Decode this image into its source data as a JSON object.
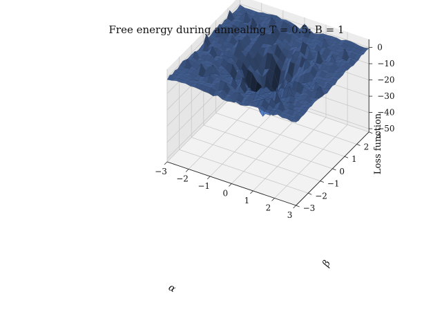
{
  "chart_data": {
    "type": "surface3d",
    "title": "Free energy during annealing T = 0.5:  B = 1",
    "xlabel": "α",
    "ylabel": "β",
    "zlabel": "Loss function",
    "x_ticks": [
      "−3",
      "−2",
      "−1",
      "0",
      "1",
      "2",
      "3"
    ],
    "y_ticks": [
      "−3",
      "−2",
      "−1",
      "0",
      "1",
      "2",
      "3"
    ],
    "z_ticks": [
      "0",
      "−10",
      "−20",
      "−30",
      "−40",
      "−50"
    ],
    "xlim": [
      -3,
      3
    ],
    "ylim": [
      -3,
      3
    ],
    "zlim": [
      -52,
      3
    ],
    "grid": true,
    "surface_color": "#4f72b0",
    "edge_color": "#1c2a45",
    "pane_color": "#ececec",
    "grid_color": "#c8c8c8",
    "baseline_z": 0,
    "dip_depth": -30,
    "spike_height": 3
  }
}
